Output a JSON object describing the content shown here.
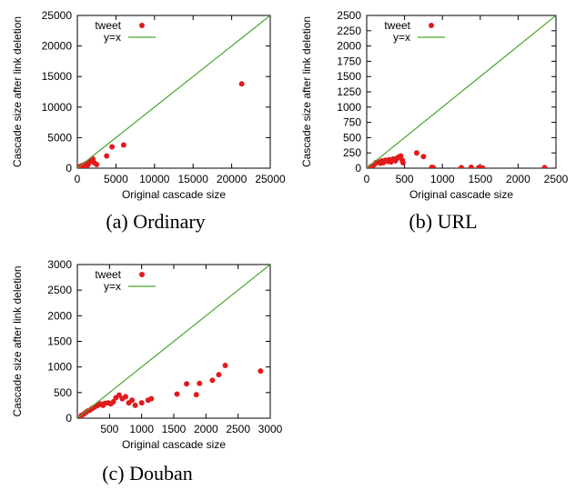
{
  "chart_data": [
    {
      "type": "scatter",
      "caption": "(a) Ordinary",
      "xlabel": "Original cascade size",
      "ylabel": "Cascade size after link deletion",
      "xlim": [
        0,
        25000
      ],
      "ylim": [
        0,
        25000
      ],
      "xticks": [
        "0",
        "5000",
        "10000",
        "15000",
        "20000",
        "25000"
      ],
      "yticks": [
        "0",
        "5000",
        "10000",
        "15000",
        "20000",
        "25000"
      ],
      "legend_position": "top-left",
      "grid": false,
      "series": [
        {
          "name": "tweet",
          "kind": "points",
          "color": "#e31a1c",
          "points": [
            [
              60,
              40
            ],
            [
              120,
              80
            ],
            [
              200,
              120
            ],
            [
              300,
              200
            ],
            [
              400,
              300
            ],
            [
              500,
              350
            ],
            [
              650,
              420
            ],
            [
              800,
              500
            ],
            [
              1000,
              300
            ],
            [
              1100,
              700
            ],
            [
              1200,
              400
            ],
            [
              1400,
              600
            ],
            [
              1600,
              1000
            ],
            [
              1800,
              1300
            ],
            [
              2000,
              1500
            ],
            [
              2200,
              900
            ],
            [
              2500,
              600
            ],
            [
              3800,
              2000
            ],
            [
              4500,
              3500
            ],
            [
              6000,
              3800
            ],
            [
              21300,
              13800
            ]
          ]
        },
        {
          "name": "y=x",
          "kind": "line",
          "color": "#4aa62a",
          "points": [
            [
              0,
              0
            ],
            [
              25000,
              25000
            ]
          ]
        }
      ]
    },
    {
      "type": "scatter",
      "caption": "(b) URL",
      "xlabel": "Original cascade size",
      "ylabel": "Cascade size after link deletion",
      "xlim": [
        0,
        2500
      ],
      "ylim": [
        0,
        2500
      ],
      "xticks": [
        "0",
        "500",
        "1000",
        "1500",
        "2000",
        "2500"
      ],
      "yticks": [
        "0",
        "250",
        "500",
        "750",
        "1000",
        "1250",
        "1500",
        "1750",
        "2000",
        "2250",
        "2500"
      ],
      "legend_position": "top-left",
      "grid": false,
      "series": [
        {
          "name": "tweet",
          "kind": "points",
          "color": "#e31a1c",
          "points": [
            [
              50,
              20
            ],
            [
              80,
              40
            ],
            [
              100,
              60
            ],
            [
              120,
              90
            ],
            [
              150,
              100
            ],
            [
              180,
              80
            ],
            [
              200,
              120
            ],
            [
              220,
              90
            ],
            [
              250,
              130
            ],
            [
              280,
              110
            ],
            [
              300,
              140
            ],
            [
              320,
              100
            ],
            [
              350,
              150
            ],
            [
              380,
              120
            ],
            [
              400,
              160
            ],
            [
              420,
              180
            ],
            [
              450,
              200
            ],
            [
              470,
              130
            ],
            [
              480,
              90
            ],
            [
              660,
              250
            ],
            [
              750,
              190
            ],
            [
              860,
              15
            ],
            [
              880,
              10
            ],
            [
              1250,
              10
            ],
            [
              1380,
              15
            ],
            [
              1480,
              10
            ],
            [
              1530,
              5
            ],
            [
              2350,
              10
            ]
          ]
        },
        {
          "name": "y=x",
          "kind": "line",
          "color": "#4aa62a",
          "points": [
            [
              0,
              0
            ],
            [
              2500,
              2500
            ]
          ]
        }
      ]
    },
    {
      "type": "scatter",
      "caption": "(c) Douban",
      "xlabel": "Original cascade size",
      "ylabel": "Cascade size after link deletion",
      "xlim": [
        0,
        3000
      ],
      "ylim": [
        0,
        3000
      ],
      "xticks": [
        "500",
        "1000",
        "1500",
        "2000",
        "2500",
        "3000"
      ],
      "yticks": [
        "0",
        "500",
        "1000",
        "1500",
        "2000",
        "2500",
        "3000"
      ],
      "legend_position": "top-left",
      "grid": false,
      "series": [
        {
          "name": "tweet",
          "kind": "points",
          "color": "#e31a1c",
          "points": [
            [
              60,
              50
            ],
            [
              100,
              80
            ],
            [
              130,
              110
            ],
            [
              160,
              140
            ],
            [
              200,
              160
            ],
            [
              230,
              190
            ],
            [
              260,
              210
            ],
            [
              300,
              240
            ],
            [
              330,
              260
            ],
            [
              360,
              280
            ],
            [
              400,
              250
            ],
            [
              430,
              290
            ],
            [
              480,
              300
            ],
            [
              520,
              280
            ],
            [
              560,
              320
            ],
            [
              600,
              400
            ],
            [
              650,
              450
            ],
            [
              700,
              380
            ],
            [
              750,
              420
            ],
            [
              800,
              300
            ],
            [
              850,
              350
            ],
            [
              900,
              250
            ],
            [
              1000,
              300
            ],
            [
              1100,
              350
            ],
            [
              1150,
              380
            ],
            [
              1550,
              470
            ],
            [
              1700,
              670
            ],
            [
              1850,
              460
            ],
            [
              1900,
              680
            ],
            [
              2100,
              740
            ],
            [
              2200,
              850
            ],
            [
              2300,
              1030
            ],
            [
              2850,
              920
            ]
          ]
        },
        {
          "name": "y=x",
          "kind": "line",
          "color": "#4aa62a",
          "points": [
            [
              0,
              0
            ],
            [
              3000,
              3000
            ]
          ]
        }
      ]
    }
  ]
}
